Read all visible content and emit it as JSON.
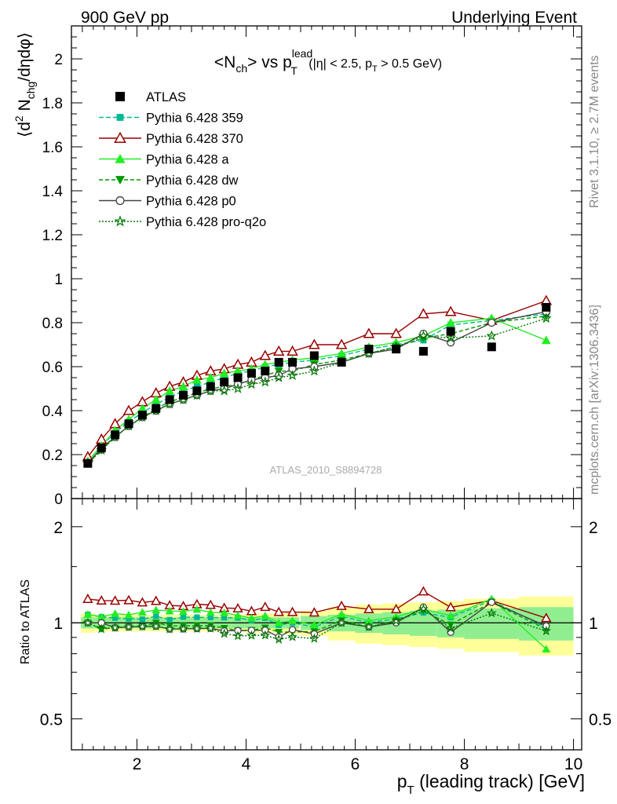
{
  "header": {
    "left": "900 GeV pp",
    "right": "Underlying Event"
  },
  "side_labels": {
    "top": "Rivet 3.1.10, ≥ 2.7M events",
    "bottom": "mcplots.cern.ch [arXiv:1306.3436]"
  },
  "watermark": "ATLAS_2010_S8894728",
  "chart_data": {
    "type": "scatter",
    "title": {
      "main": "<N",
      "main_sub": "ch",
      "mid": "> vs p",
      "mid_sup": "lead",
      "mid_sub": "T",
      "cut1": " (|η| < 2.5, p",
      "cut_sub": "T",
      "cut2": " > 0.5 GeV)"
    },
    "ylabel": {
      "a": "⟨d",
      "sup": "2",
      "b": " N",
      "sub": "chg",
      "c": "/dηdφ⟩"
    },
    "ratio_ylabel": "Ratio to ATLAS",
    "xlabel": {
      "p": "p",
      "sub": "T",
      "rest": " (leading track) [GeV]"
    },
    "xlim": [
      0.8,
      10.15
    ],
    "ylim": [
      0,
      2.15
    ],
    "ratio_ylim": [
      0.4,
      2.45
    ],
    "ratio_scale": "log",
    "x_ticks": [
      2,
      4,
      6,
      8,
      10
    ],
    "x_tick_labels": [
      "2",
      "4",
      "6",
      "8",
      "10"
    ],
    "y_ticks": [
      0,
      0.2,
      0.4,
      0.6,
      0.8,
      1,
      1.2,
      1.4,
      1.6,
      1.8,
      2
    ],
    "y_tick_labels": [
      "0",
      "0.2",
      "0.4",
      "0.6",
      "0.8",
      "1",
      "1.2",
      "1.4",
      "1.6",
      "1.8",
      "2"
    ],
    "ratio_ticks": [
      0.5,
      1,
      2
    ],
    "ratio_tick_labels": [
      "0.5",
      "1",
      "2"
    ],
    "x": [
      1.1,
      1.35,
      1.6,
      1.85,
      2.1,
      2.35,
      2.6,
      2.85,
      3.1,
      3.35,
      3.6,
      3.85,
      4.1,
      4.35,
      4.6,
      4.85,
      5.25,
      5.75,
      6.25,
      6.75,
      7.25,
      7.75,
      8.5,
      9.5
    ],
    "x_err": [
      0.125,
      0.125,
      0.125,
      0.125,
      0.125,
      0.125,
      0.125,
      0.125,
      0.125,
      0.125,
      0.125,
      0.125,
      0.125,
      0.125,
      0.125,
      0.125,
      0.25,
      0.25,
      0.25,
      0.25,
      0.25,
      0.25,
      0.5,
      0.5
    ],
    "data": {
      "name": "ATLAS",
      "values": [
        0.16,
        0.23,
        0.29,
        0.34,
        0.38,
        0.41,
        0.45,
        0.47,
        0.49,
        0.51,
        0.53,
        0.55,
        0.57,
        0.58,
        0.62,
        0.62,
        0.65,
        0.62,
        0.68,
        0.68,
        0.67,
        0.76,
        0.69,
        0.87
      ],
      "band_stat": [
        0.04,
        0.04,
        0.04,
        0.04,
        0.04,
        0.04,
        0.04,
        0.04,
        0.04,
        0.04,
        0.04,
        0.04,
        0.04,
        0.04,
        0.04,
        0.04,
        0.05,
        0.06,
        0.07,
        0.08,
        0.09,
        0.1,
        0.11,
        0.12
      ],
      "band_tot": [
        0.07,
        0.06,
        0.06,
        0.06,
        0.06,
        0.06,
        0.06,
        0.06,
        0.06,
        0.06,
        0.06,
        0.06,
        0.07,
        0.07,
        0.07,
        0.08,
        0.09,
        0.12,
        0.14,
        0.15,
        0.16,
        0.17,
        0.19,
        0.21
      ],
      "color": "#000000",
      "band_stat_color": "#90ee90",
      "band_tot_color": "#ffff99"
    },
    "series": [
      {
        "name": "Pythia 6.428 359",
        "color": "#00b894",
        "marker": "square",
        "dash": "6,3",
        "values": [
          0.17,
          0.24,
          0.3,
          0.35,
          0.39,
          0.43,
          0.46,
          0.49,
          0.51,
          0.53,
          0.55,
          0.57,
          0.58,
          0.6,
          0.61,
          0.62,
          0.63,
          0.65,
          0.68,
          0.7,
          0.72,
          0.79,
          0.81,
          0.84
        ]
      },
      {
        "name": "Pythia 6.428 370",
        "color": "#990000",
        "marker": "triangle-open",
        "dash": "",
        "values": [
          0.19,
          0.27,
          0.34,
          0.4,
          0.44,
          0.48,
          0.51,
          0.53,
          0.56,
          0.58,
          0.59,
          0.61,
          0.62,
          0.65,
          0.67,
          0.67,
          0.7,
          0.7,
          0.75,
          0.75,
          0.84,
          0.85,
          0.81,
          0.9
        ]
      },
      {
        "name": "Pythia 6.428 a",
        "color": "#22ee22",
        "marker": "triangle",
        "dash": "",
        "values": [
          0.17,
          0.24,
          0.31,
          0.36,
          0.41,
          0.45,
          0.49,
          0.51,
          0.54,
          0.55,
          0.57,
          0.58,
          0.59,
          0.61,
          0.62,
          0.63,
          0.64,
          0.66,
          0.69,
          0.71,
          0.74,
          0.8,
          0.82,
          0.72
        ]
      },
      {
        "name": "Pythia 6.428 dw",
        "color": "#009900",
        "marker": "triangle-down",
        "dash": "5,3",
        "values": [
          0.16,
          0.22,
          0.28,
          0.33,
          0.37,
          0.41,
          0.44,
          0.46,
          0.48,
          0.5,
          0.51,
          0.52,
          0.54,
          0.56,
          0.58,
          0.58,
          0.61,
          0.63,
          0.66,
          0.69,
          0.73,
          0.75,
          0.8,
          0.83
        ]
      },
      {
        "name": "Pythia 6.428 p0",
        "color": "#444444",
        "marker": "circle-open",
        "dash": "",
        "values": [
          0.16,
          0.23,
          0.28,
          0.33,
          0.37,
          0.4,
          0.43,
          0.45,
          0.47,
          0.49,
          0.5,
          0.52,
          0.54,
          0.55,
          0.56,
          0.59,
          0.6,
          0.62,
          0.66,
          0.68,
          0.75,
          0.71,
          0.8,
          0.85
        ]
      },
      {
        "name": "Pythia 6.428 pro-q2o",
        "color": "#007700",
        "marker": "star",
        "dash": "2,2",
        "values": [
          0.16,
          0.22,
          0.28,
          0.33,
          0.37,
          0.4,
          0.43,
          0.45,
          0.47,
          0.49,
          0.49,
          0.5,
          0.52,
          0.53,
          0.55,
          0.56,
          0.58,
          0.62,
          0.66,
          0.69,
          0.74,
          0.73,
          0.74,
          0.82
        ]
      }
    ],
    "legend_position": "top-left",
    "grid": false
  }
}
